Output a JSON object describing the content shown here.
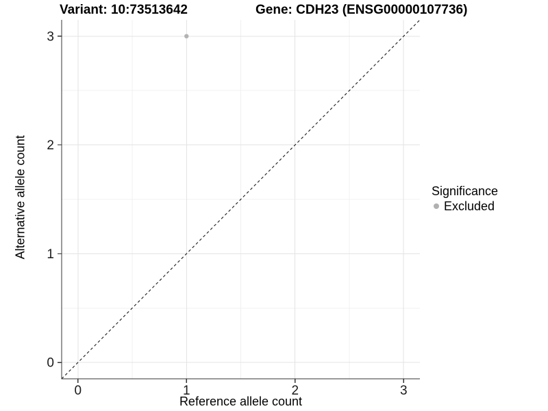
{
  "chart_data": {
    "type": "scatter",
    "title_left": "Variant: 10:73513642",
    "title_right": "Gene: CDH23 (ENSG00000107736)",
    "xlabel": "Reference allele count",
    "ylabel": "Alternative allele count",
    "xlim": [
      -0.15,
      3.15
    ],
    "ylim": [
      -0.15,
      3.15
    ],
    "x_ticks": [
      0,
      1,
      2,
      3
    ],
    "y_ticks": [
      0,
      1,
      2,
      3
    ],
    "x_minor": [
      0.5,
      1.5,
      2.5
    ],
    "y_minor": [
      0.5,
      1.5,
      2.5
    ],
    "grid": true,
    "legend_position": "right",
    "series": [
      {
        "name": "Excluded",
        "color": "#b3b3b3",
        "points": [
          {
            "x": 1,
            "y": 3
          }
        ]
      }
    ],
    "reference_line": {
      "type": "identity",
      "from": [
        -0.15,
        -0.15
      ],
      "to": [
        3.15,
        3.15
      ],
      "style": "dashed",
      "color": "#1a1a1a"
    },
    "legend": {
      "title": "Significance",
      "entries": [
        {
          "label": "Excluded",
          "color": "#b0b0b0",
          "marker": "circle"
        }
      ]
    },
    "colors": {
      "background": "#ffffff",
      "grid_major": "#e3e3e3",
      "grid_minor": "#f0f0f0",
      "axis": "#333333",
      "tick_label": "#1a1a1a",
      "point": "#b3b3b3"
    }
  }
}
